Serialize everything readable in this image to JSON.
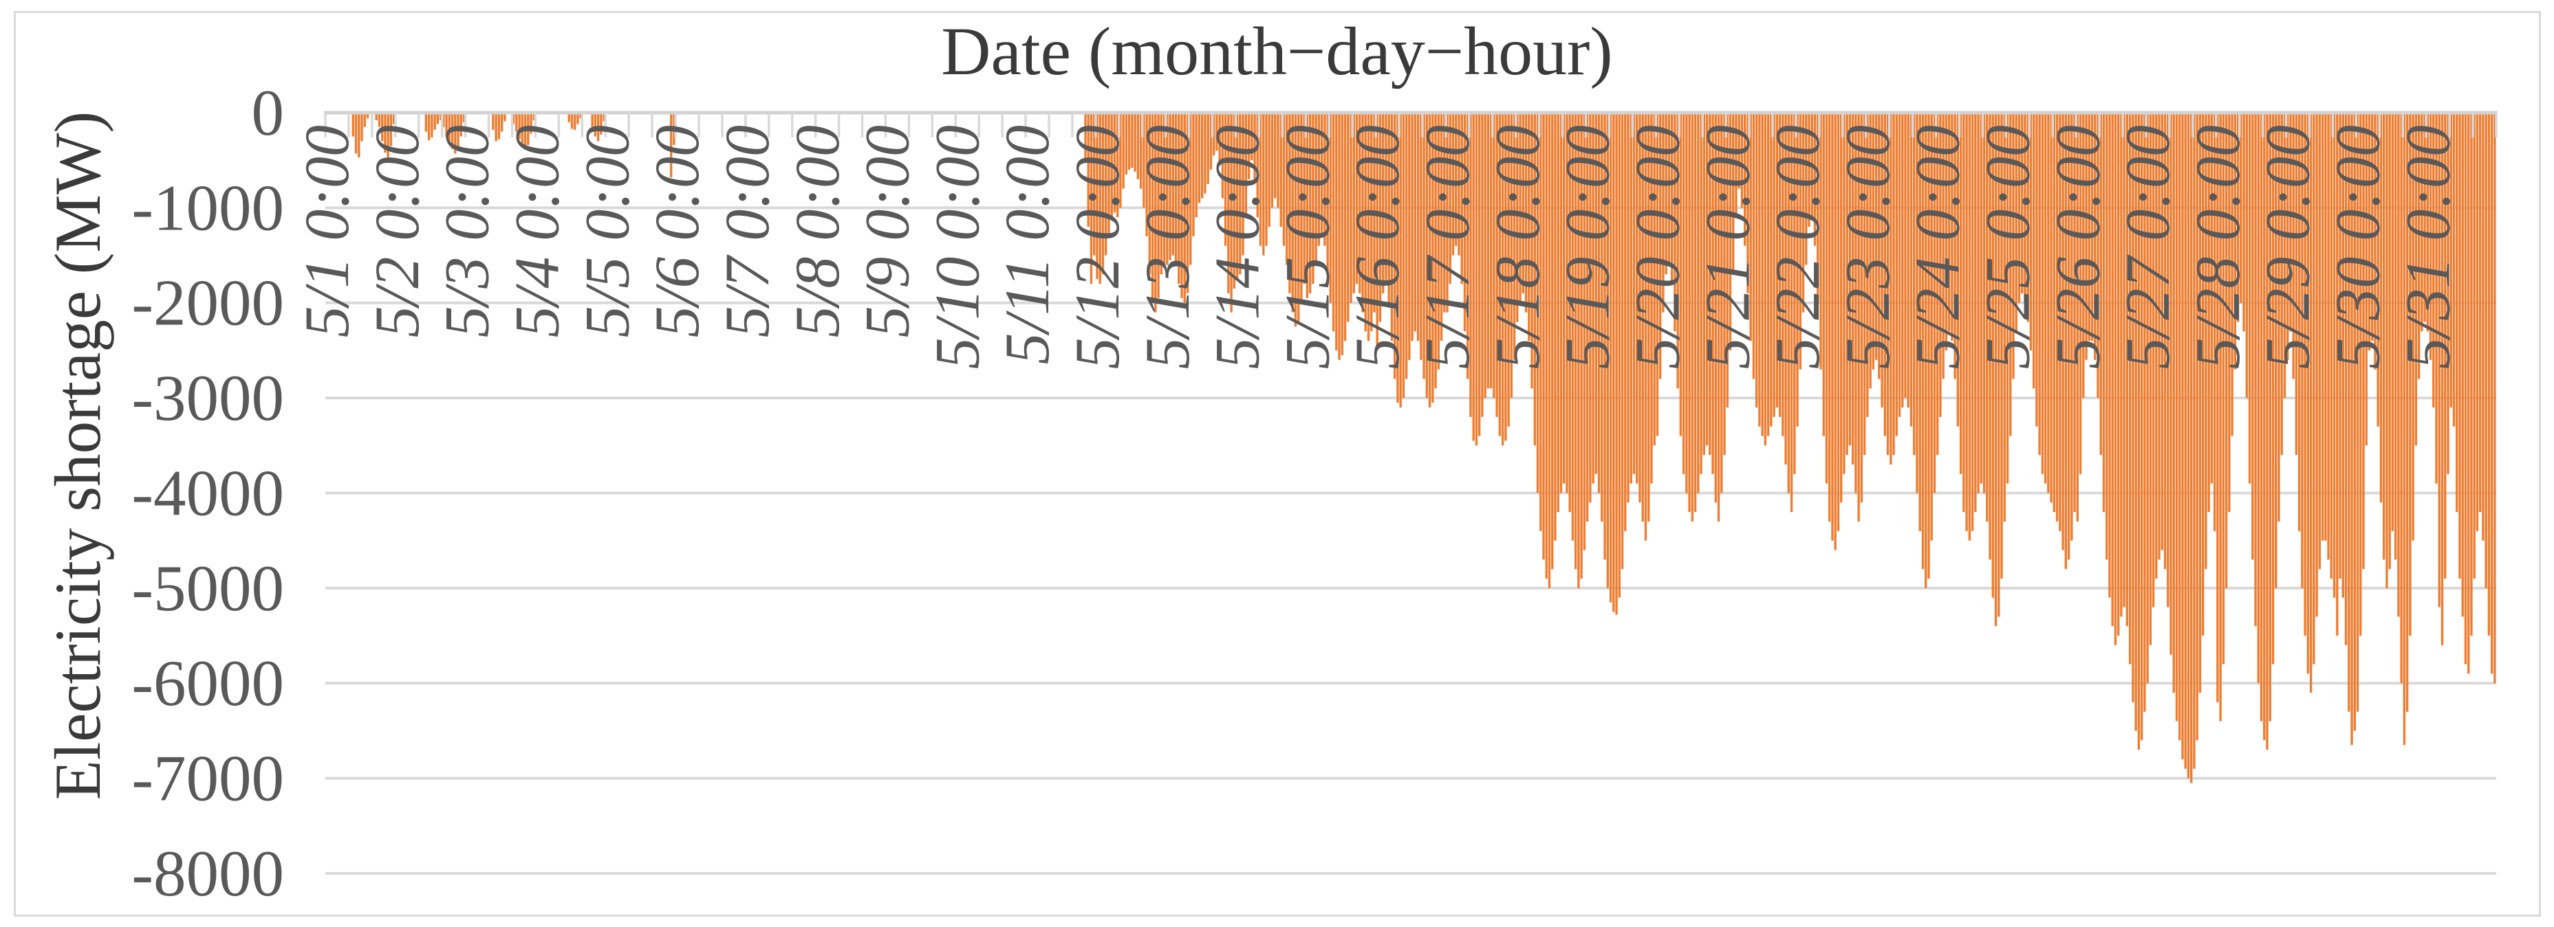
{
  "chart": {
    "title": "Date (month−day−hour)",
    "y_axis_title": "Electricity shortage (MW)",
    "colors": {
      "bar": "#ED7D31",
      "gridline": "#D9D9D9",
      "axis": "#D2D2D2",
      "tick_label": "#595959",
      "title_text": "#3A3A3A"
    }
  },
  "chart_data": {
    "type": "bar",
    "title": "Date (month−day−hour)",
    "xlabel": "Date (month−day−hour)",
    "ylabel": "Electricity shortage (MW)",
    "unit": "MW",
    "x_unit": "hour",
    "ylim": [
      -8000,
      0
    ],
    "grid": "horizontal",
    "legend": "none",
    "y_ticks": [
      0,
      -1000,
      -2000,
      -3000,
      -4000,
      -5000,
      -6000,
      -7000,
      -8000
    ],
    "x_tick_interval_hours": 24,
    "tick_mark_interval_hours": 8,
    "x_tick_labels": [
      "5/1 0:00",
      "5/2 0:00",
      "5/3 0:00",
      "5/4 0:00",
      "5/5 0:00",
      "5/6 0:00",
      "5/7 0:00",
      "5/8 0:00",
      "5/9 0:00",
      "5/10 0:00",
      "5/11 0:00",
      "5/12 0:00",
      "5/13 0:00",
      "5/14 0:00",
      "5/15 0:00",
      "5/16 0:00",
      "5/17 0:00",
      "5/18 0:00",
      "5/19 0:00",
      "5/20 0:00",
      "5/21 0:00",
      "5/22 0:00",
      "5/23 0:00",
      "5/24 0:00",
      "5/25 0:00",
      "5/26 0:00",
      "5/27 0:00",
      "5/28 0:00",
      "5/29 0:00",
      "5/30 0:00",
      "5/31 0:00"
    ],
    "days": [
      {
        "date": "5/1",
        "hourly_mw": [
          0,
          0,
          0,
          0,
          0,
          0,
          0,
          0,
          0,
          -250,
          -430,
          -470,
          -300,
          -150,
          -60,
          0,
          0,
          -80,
          -150,
          -300,
          -420,
          -470,
          -350,
          -120
        ]
      },
      {
        "date": "5/2",
        "hourly_mw": [
          0,
          0,
          0,
          0,
          0,
          0,
          0,
          0,
          0,
          0,
          -200,
          -290,
          -260,
          -180,
          -120,
          -80,
          -150,
          -250,
          -300,
          -380,
          -430,
          -400,
          -250,
          -100
        ]
      },
      {
        "date": "5/3",
        "hourly_mw": [
          0,
          0,
          0,
          0,
          0,
          0,
          0,
          0,
          0,
          -180,
          -300,
          -280,
          -200,
          -90,
          0,
          0,
          -120,
          -200,
          -280,
          -330,
          -370,
          -340,
          -220,
          -80
        ]
      },
      {
        "date": "5/4",
        "hourly_mw": [
          0,
          0,
          0,
          0,
          0,
          0,
          0,
          0,
          0,
          0,
          0,
          -100,
          -170,
          -180,
          -120,
          -60,
          0,
          0,
          0,
          -150,
          -250,
          -300,
          -230,
          -90
        ]
      },
      {
        "date": "5/5",
        "hourly_mw": [
          0,
          0,
          0,
          0,
          0,
          0,
          0,
          0,
          0,
          0,
          0,
          0,
          0,
          0,
          0,
          0,
          0,
          0,
          0,
          0,
          0,
          0,
          -680,
          -340
        ]
      },
      {
        "date": "5/6",
        "hourly_mw": [
          0,
          0,
          0,
          0,
          0,
          0,
          0,
          0,
          0,
          0,
          0,
          0,
          0,
          0,
          0,
          0,
          0,
          0,
          0,
          0,
          0,
          0,
          0,
          0
        ]
      },
      {
        "date": "5/7",
        "hourly_mw": [
          0,
          0,
          0,
          0,
          0,
          0,
          0,
          0,
          0,
          0,
          0,
          0,
          0,
          0,
          0,
          0,
          0,
          0,
          0,
          0,
          0,
          0,
          0,
          0
        ]
      },
      {
        "date": "5/8",
        "hourly_mw": [
          0,
          0,
          0,
          0,
          0,
          0,
          0,
          0,
          0,
          0,
          0,
          0,
          0,
          0,
          0,
          0,
          0,
          0,
          0,
          0,
          0,
          0,
          0,
          0
        ]
      },
      {
        "date": "5/9",
        "hourly_mw": [
          0,
          0,
          0,
          0,
          0,
          0,
          0,
          0,
          0,
          0,
          0,
          0,
          0,
          0,
          0,
          0,
          0,
          0,
          0,
          0,
          0,
          0,
          0,
          0
        ]
      },
      {
        "date": "5/10",
        "hourly_mw": [
          0,
          0,
          0,
          0,
          0,
          0,
          0,
          0,
          0,
          0,
          0,
          0,
          0,
          0,
          0,
          0,
          0,
          0,
          0,
          0,
          0,
          0,
          0,
          0
        ]
      },
      {
        "date": "5/11",
        "hourly_mw": [
          0,
          0,
          0,
          0,
          0,
          0,
          0,
          0,
          0,
          0,
          0,
          0,
          0,
          0,
          0,
          0,
          0,
          0,
          0,
          0,
          -500,
          -1200,
          -1800,
          -1500
        ]
      },
      {
        "date": "5/12",
        "hourly_mw": [
          -1750,
          -1800,
          -1700,
          -1500,
          -1300,
          -1100,
          -1050,
          -1100,
          -1000,
          -800,
          -650,
          -600,
          -580,
          -620,
          -700,
          -800,
          -1000,
          -1300,
          -1700,
          -2000,
          -2100,
          -1950,
          -1700,
          -1600
        ]
      },
      {
        "date": "5/13",
        "hourly_mw": [
          -1600,
          -1550,
          -1500,
          -1600,
          -1800,
          -1950,
          -2000,
          -1900,
          -1600,
          -1300,
          -1100,
          -950,
          -900,
          -850,
          -750,
          -600,
          -450,
          -400,
          -550,
          -900,
          -1400,
          -1900,
          -2100,
          -1850
        ]
      },
      {
        "date": "5/14",
        "hourly_mw": [
          -1750,
          -1700,
          -1500,
          -1100,
          -700,
          -500,
          -700,
          -1100,
          -1400,
          -1500,
          -1400,
          -1200,
          -1000,
          -900,
          -1000,
          -1200,
          -1400,
          -1600,
          -1900,
          -2100,
          -2250,
          -2200,
          -2000,
          -1800
        ]
      },
      {
        "date": "5/15",
        "hourly_mw": [
          -1950,
          -1900,
          -1800,
          -1600,
          -1400,
          -1300,
          -1400,
          -1700,
          -2000,
          -2300,
          -2500,
          -2600,
          -2550,
          -2400,
          -2200,
          -2000,
          -1900,
          -1800,
          -1900,
          -2100,
          -2300,
          -2400,
          -2300,
          -2100
        ]
      },
      {
        "date": "5/16",
        "hourly_mw": [
          -2500,
          -2200,
          -1900,
          -1800,
          -2000,
          -2400,
          -2800,
          -3050,
          -3100,
          -3000,
          -2800,
          -2600,
          -2400,
          -2300,
          -2400,
          -2600,
          -2800,
          -3000,
          -3100,
          -3050,
          -2900,
          -2700,
          -2400,
          -2100
        ]
      },
      {
        "date": "5/17",
        "hourly_mw": [
          -2100,
          -1800,
          -1500,
          -1400,
          -1500,
          -1800,
          -2300,
          -2800,
          -3200,
          -3450,
          -3500,
          -3400,
          -3200,
          -3000,
          -2900,
          -2900,
          -3000,
          -3200,
          -3400,
          -3500,
          -3450,
          -3300,
          -3000,
          -2600
        ]
      },
      {
        "date": "5/18",
        "hourly_mw": [
          -2200,
          -2000,
          -1900,
          -2100,
          -2400,
          -2900,
          -3500,
          -4000,
          -4400,
          -4700,
          -4900,
          -5000,
          -4800,
          -4500,
          -4200,
          -4000,
          -3900,
          -4000,
          -4200,
          -4500,
          -4800,
          -5000,
          -4900,
          -4600
        ]
      },
      {
        "date": "5/19",
        "hourly_mw": [
          -4300,
          -4100,
          -3900,
          -3800,
          -4000,
          -4300,
          -4700,
          -5000,
          -5150,
          -5250,
          -5280,
          -5100,
          -4800,
          -4400,
          -4100,
          -3900,
          -3800,
          -3900,
          -4100,
          -4300,
          -4500,
          -4300,
          -3900,
          -3500
        ]
      },
      {
        "date": "5/20",
        "hourly_mw": [
          -3400,
          -2800,
          -2100,
          -1700,
          -1600,
          -1800,
          -2300,
          -2900,
          -3400,
          -3800,
          -4000,
          -4200,
          -4300,
          -4200,
          -4000,
          -3800,
          -3600,
          -3500,
          -3600,
          -3800,
          -4100,
          -4300,
          -4000,
          -3600
        ]
      },
      {
        "date": "5/21",
        "hourly_mw": [
          -3100,
          -2500,
          -1700,
          -1100,
          -800,
          -1000,
          -1400,
          -1900,
          -2400,
          -2800,
          -3100,
          -3300,
          -3400,
          -3500,
          -3400,
          -3300,
          -3200,
          -3100,
          -3200,
          -3400,
          -3700,
          -4000,
          -4200,
          -3800
        ]
      },
      {
        "date": "5/22",
        "hourly_mw": [
          -3300,
          -2700,
          -2100,
          -1600,
          -1200,
          -1100,
          -1400,
          -2000,
          -2700,
          -3400,
          -3900,
          -4300,
          -4500,
          -4600,
          -4400,
          -4100,
          -3800,
          -3600,
          -3500,
          -3700,
          -4000,
          -4300,
          -4100,
          -3600
        ]
      },
      {
        "date": "5/23",
        "hourly_mw": [
          -3200,
          -2900,
          -2700,
          -2600,
          -2800,
          -3100,
          -3400,
          -3600,
          -3700,
          -3600,
          -3400,
          -3200,
          -3100,
          -3000,
          -3100,
          -3300,
          -3600,
          -4000,
          -4400,
          -4800,
          -5000,
          -4900,
          -4500,
          -4000
        ]
      },
      {
        "date": "5/24",
        "hourly_mw": [
          -3600,
          -3200,
          -2800,
          -2500,
          -2300,
          -2400,
          -2800,
          -3300,
          -3800,
          -4200,
          -4400,
          -4500,
          -4400,
          -4200,
          -4000,
          -3900,
          -4000,
          -4300,
          -4700,
          -5100,
          -5400,
          -5300,
          -4900,
          -4300
        ]
      },
      {
        "date": "5/25",
        "hourly_mw": [
          -3900,
          -3400,
          -2800,
          -2300,
          -2000,
          -1900,
          -2000,
          -2200,
          -2500,
          -2900,
          -3300,
          -3600,
          -3800,
          -3900,
          -4000,
          -4100,
          -4200,
          -4300,
          -4400,
          -4600,
          -4800,
          -4700,
          -4500,
          -4200
        ]
      },
      {
        "date": "5/26",
        "hourly_mw": [
          -4300,
          -3800,
          -3000,
          -2600,
          -2400,
          -2400,
          -2600,
          -3000,
          -3600,
          -4200,
          -4700,
          -5100,
          -5400,
          -5600,
          -5500,
          -5300,
          -5200,
          -5400,
          -5800,
          -6200,
          -6500,
          -6700,
          -6600,
          -6300
        ]
      },
      {
        "date": "5/27",
        "hourly_mw": [
          -6000,
          -5600,
          -5200,
          -4900,
          -4700,
          -4600,
          -4800,
          -5200,
          -5700,
          -6100,
          -6400,
          -6600,
          -6800,
          -6900,
          -7000,
          -7050,
          -6900,
          -6600,
          -6100,
          -5500,
          -4800,
          -4200,
          -3900,
          -4400
        ]
      },
      {
        "date": "5/28",
        "hourly_mw": [
          -6200,
          -6400,
          -5800,
          -5000,
          -4200,
          -3400,
          -2700,
          -2200,
          -2000,
          -2300,
          -3000,
          -3900,
          -4700,
          -5400,
          -6000,
          -6400,
          -6600,
          -6700,
          -6400,
          -5800,
          -5000,
          -4300,
          -3600,
          -3000
        ]
      },
      {
        "date": "5/29",
        "hourly_mw": [
          -2600,
          -2300,
          -2800,
          -3600,
          -4400,
          -5000,
          -5500,
          -5900,
          -6100,
          -5800,
          -5300,
          -4800,
          -4500,
          -4500,
          -4700,
          -4900,
          -5100,
          -5500,
          -4900,
          -5100,
          -5600,
          -6300,
          -6650,
          -6500
        ]
      },
      {
        "date": "5/30",
        "hourly_mw": [
          -6300,
          -5500,
          -4800,
          -3500,
          -2500,
          -2400,
          -2700,
          -3300,
          -4100,
          -4700,
          -5000,
          -4800,
          -4400,
          -4700,
          -5300,
          -6000,
          -6650,
          -6300,
          -5500,
          -4500,
          -3500,
          -2800,
          -2300,
          -2200
        ]
      },
      {
        "date": "5/31",
        "hourly_mw": [
          -2300,
          -2600,
          -3100,
          -3900,
          -5200,
          -5600,
          -4900,
          -3800,
          -3100,
          -3300,
          -4200,
          -4900,
          -5300,
          -5800,
          -5900,
          -5500,
          -4900,
          -4400,
          -4200,
          -4500,
          -5000,
          -5500,
          -5900,
          -6000
        ]
      }
    ]
  }
}
